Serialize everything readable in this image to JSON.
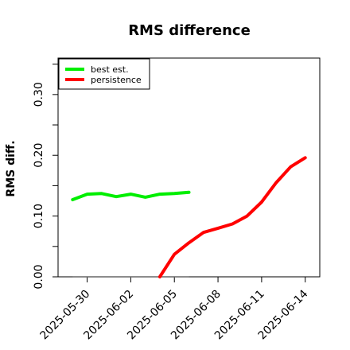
{
  "chart_data": {
    "type": "line",
    "title": "RMS difference",
    "xlabel": "",
    "ylabel": "RMS diff.",
    "xlim": [
      "2025-05-28",
      "2025-06-15"
    ],
    "ylim": [
      0.0,
      0.36
    ],
    "x_ticks": [
      "2025-05-30",
      "2025-06-02",
      "2025-06-05",
      "2025-06-08",
      "2025-06-11",
      "2025-06-14"
    ],
    "y_ticks": [
      0.0,
      0.1,
      0.2,
      0.3
    ],
    "y_tick_labels": [
      "0.00",
      "0.10",
      "0.20",
      "0.30"
    ],
    "grid": false,
    "legend_position": "top-left",
    "series": [
      {
        "name": "best est.",
        "color": "#00ee00",
        "x": [
          "2025-05-29",
          "2025-05-30",
          "2025-05-31",
          "2025-06-01",
          "2025-06-02",
          "2025-06-03",
          "2025-06-04",
          "2025-06-05",
          "2025-06-06"
        ],
        "y": [
          0.127,
          0.136,
          0.137,
          0.132,
          0.136,
          0.131,
          0.136,
          0.137,
          0.139
        ]
      },
      {
        "name": "persistence",
        "color": "#ff0000",
        "x": [
          "2025-06-04",
          "2025-06-05",
          "2025-06-06",
          "2025-06-07",
          "2025-06-08",
          "2025-06-09",
          "2025-06-10",
          "2025-06-11",
          "2025-06-12",
          "2025-06-13",
          "2025-06-14"
        ],
        "y": [
          0.0,
          0.037,
          0.056,
          0.073,
          0.08,
          0.087,
          0.1,
          0.123,
          0.155,
          0.181,
          0.196
        ]
      }
    ],
    "reference_line": {
      "color": "#666666",
      "x": [
        "2025-05-29",
        "2025-06-06"
      ],
      "y": [
        0.0,
        0.0
      ]
    }
  }
}
